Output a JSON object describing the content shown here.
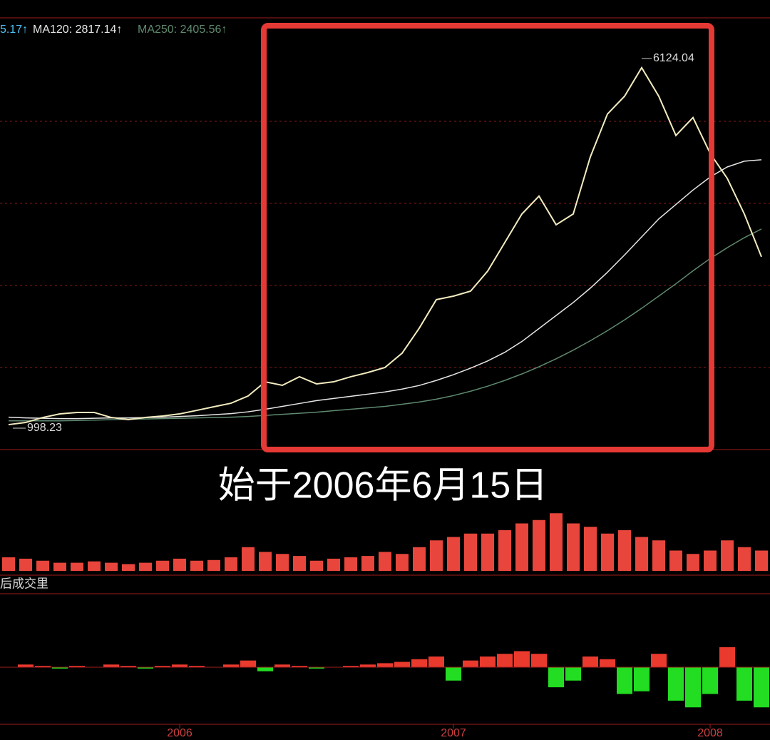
{
  "chart_data": [
    {
      "type": "line",
      "legend_partial": "5.17↑",
      "categories": [
        null,
        null,
        null,
        null,
        null,
        null,
        null,
        null,
        null,
        null,
        "2006",
        null,
        null,
        null,
        null,
        null,
        null,
        null,
        null,
        null,
        null,
        null,
        null,
        null,
        null,
        null,
        "2007",
        null,
        null,
        null,
        null,
        null,
        null,
        null,
        null,
        null,
        null,
        null,
        null,
        null,
        null,
        "2008",
        null,
        null,
        null
      ],
      "values": [
        1047,
        1077,
        1146,
        1196,
        1216,
        1216,
        1146,
        1117,
        1146,
        1166,
        1196,
        1245,
        1295,
        1344,
        1444,
        1641,
        1592,
        1711,
        1612,
        1641,
        1711,
        1770,
        1840,
        2038,
        2384,
        2780,
        2829,
        2898,
        3176,
        3572,
        3968,
        4216,
        3819,
        3968,
        4760,
        5354,
        5601,
        5997,
        5601,
        5057,
        5305,
        4810,
        4463,
        3968,
        3374
      ],
      "color": "#f3ecc0",
      "series": [
        {
          "name": "MA120: 2817.14↑",
          "color": "#e6e6e6",
          "values": [
            1150,
            1140,
            1135,
            1130,
            1130,
            1135,
            1140,
            1140,
            1145,
            1150,
            1160,
            1170,
            1185,
            1200,
            1225,
            1260,
            1300,
            1340,
            1380,
            1410,
            1440,
            1470,
            1500,
            1540,
            1590,
            1660,
            1740,
            1830,
            1930,
            2050,
            2200,
            2380,
            2560,
            2740,
            2940,
            3160,
            3400,
            3650,
            3900,
            4100,
            4300,
            4480,
            4620,
            4700,
            4720
          ]
        },
        {
          "name": "MA250: 2405.56↑",
          "color": "#5f8a6f",
          "values": [
            1100,
            1100,
            1100,
            1100,
            1105,
            1110,
            1115,
            1120,
            1125,
            1130,
            1135,
            1140,
            1145,
            1150,
            1160,
            1175,
            1190,
            1205,
            1220,
            1240,
            1260,
            1280,
            1300,
            1330,
            1360,
            1400,
            1450,
            1510,
            1580,
            1660,
            1750,
            1850,
            1960,
            2080,
            2210,
            2350,
            2500,
            2660,
            2830,
            3000,
            3180,
            3350,
            3500,
            3640,
            3760
          ]
        }
      ],
      "high_label": 6124.04,
      "low_label": 998.23,
      "caption": "始于2006年6月15日",
      "ylim": [
        721,
        6688
      ]
    },
    {
      "type": "bar",
      "label": "后成交里",
      "values": [
        20,
        18,
        15,
        12,
        12,
        14,
        12,
        10,
        12,
        15,
        18,
        15,
        16,
        20,
        35,
        28,
        25,
        22,
        15,
        18,
        20,
        22,
        28,
        25,
        35,
        45,
        50,
        55,
        55,
        60,
        70,
        75,
        85,
        70,
        65,
        55,
        60,
        50,
        45,
        30,
        25,
        30,
        45,
        35,
        30
      ],
      "color": "#e8463c",
      "ylim": [
        0,
        100
      ]
    },
    {
      "type": "histogram-osc",
      "values": [
        0,
        2,
        1,
        -1,
        1,
        0,
        2,
        1,
        -1,
        1,
        2,
        1,
        0,
        2,
        5,
        -3,
        2,
        1,
        -1,
        0,
        1,
        2,
        3,
        4,
        6,
        8,
        -10,
        5,
        8,
        10,
        12,
        10,
        -15,
        -10,
        8,
        6,
        -20,
        -18,
        10,
        -25,
        -30,
        -20,
        15,
        -25,
        -30
      ],
      "colors": {
        "positive": "#ea3a2e",
        "negative": "#22dd22"
      },
      "ylim": [
        -40,
        40
      ]
    }
  ]
}
